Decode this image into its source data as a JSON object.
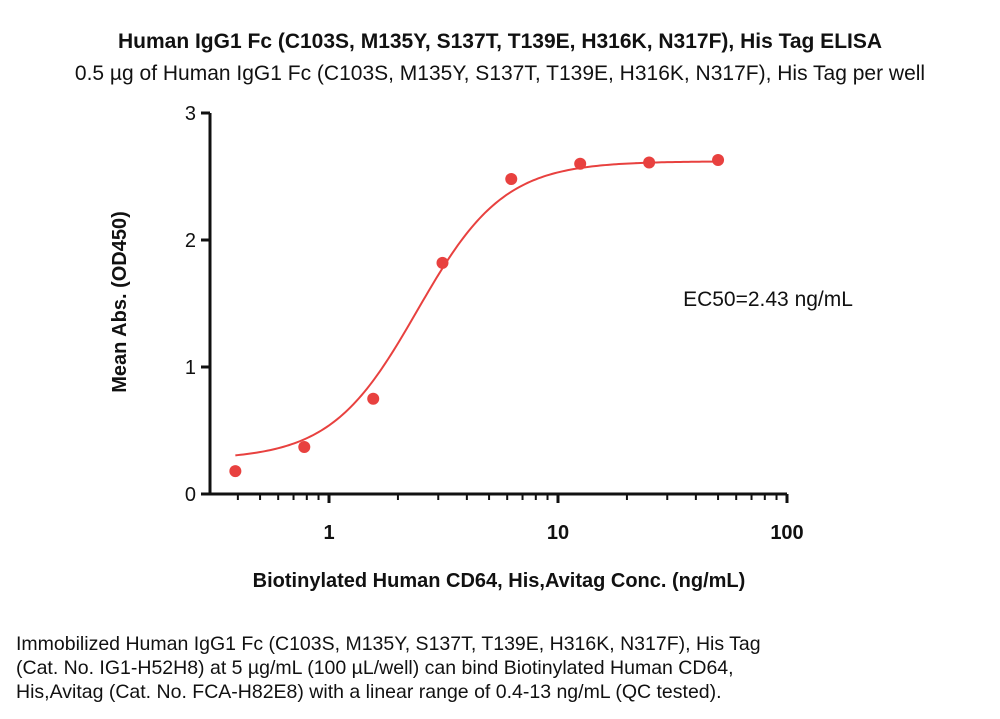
{
  "chart_data": {
    "type": "scatter",
    "title": "Human IgG1 Fc (C103S, M135Y, S137T, T139E, H316K, N317F), His Tag ELISA",
    "subtitle": "0.5 µg of Human IgG1 Fc (C103S, M135Y, S137T, T139E, H316K, N317F), His Tag per well",
    "xlabel": "Biotinylated Human CD64, His,Avitag Conc. (ng/mL)",
    "ylabel": "Mean Abs. (OD450)",
    "x_scale": "log",
    "xlim": [
      0.39,
      100
    ],
    "ylim": [
      0,
      3
    ],
    "x_ticks": [
      1,
      10,
      100
    ],
    "x_tick_labels": [
      "1",
      "10",
      "100"
    ],
    "y_ticks": [
      0,
      1,
      2,
      3
    ],
    "y_tick_labels": [
      "0",
      "1",
      "2",
      "3"
    ],
    "grid": false,
    "series": [
      {
        "x": [
          0.39,
          0.78,
          1.56,
          3.13,
          6.25,
          12.5,
          25,
          50
        ],
        "y": [
          0.18,
          0.37,
          0.75,
          1.82,
          2.48,
          2.6,
          2.61,
          2.63
        ],
        "color": "#e8413f",
        "fit": "4PL sigmoid curve"
      }
    ],
    "annotation": "EC50=2.43 ng/mL"
  },
  "caption": {
    "lines": [
      "Immobilized Human IgG1 Fc (C103S, M135Y, S137T, T139E, H316K, N317F), His Tag",
      "(Cat. No. IG1-H52H8) at 5 µg/mL (100 µL/well) can bind Biotinylated Human CD64,",
      "His,Avitag (Cat. No. FCA-H82E8) with a linear range of 0.4-13 ng/mL (QC tested)."
    ]
  }
}
